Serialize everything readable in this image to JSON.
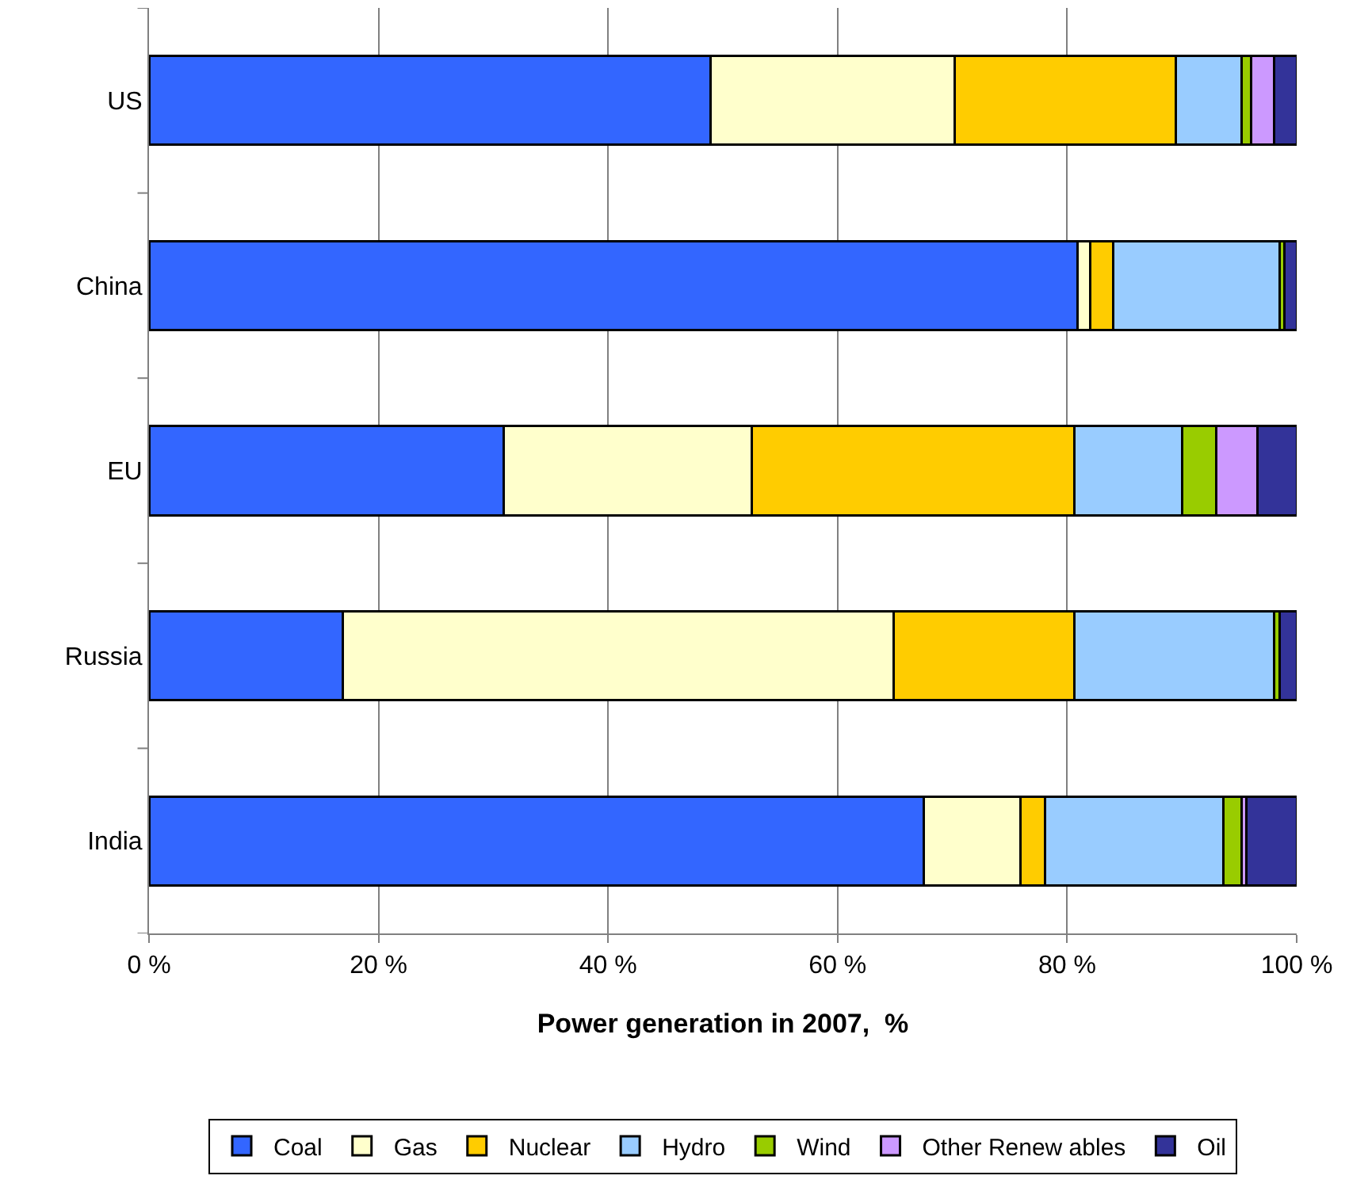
{
  "chart_data": {
    "type": "bar",
    "orientation": "horizontal",
    "stacked": true,
    "xlabel": "Power generation in 2007,  %",
    "categories": [
      "US",
      "China",
      "EU",
      "Russia",
      "India"
    ],
    "series": [
      {
        "name": "Coal",
        "color": "#3366ff",
        "values": [
          48.9,
          80.9,
          30.9,
          16.9,
          67.5
        ]
      },
      {
        "name": "Gas",
        "color": "#ffffcc",
        "values": [
          21.3,
          1.1,
          21.6,
          48.0,
          8.4
        ]
      },
      {
        "name": "Nuclear",
        "color": "#ffcc00",
        "values": [
          19.3,
          2.0,
          28.1,
          15.7,
          2.2
        ]
      },
      {
        "name": "Hydro",
        "color": "#99ccff",
        "values": [
          5.7,
          14.5,
          9.4,
          17.4,
          15.5
        ]
      },
      {
        "name": "Wind",
        "color": "#99cc00",
        "values": [
          0.8,
          0.4,
          3.0,
          0.5,
          1.6
        ]
      },
      {
        "name": "Other Renew ables",
        "color": "#cc99ff",
        "values": [
          2.0,
          0,
          3.6,
          0,
          0.4
        ]
      },
      {
        "name": "Oil",
        "color": "#333399",
        "values": [
          2.0,
          1.1,
          3.4,
          1.5,
          4.4
        ]
      }
    ],
    "xlim": [
      0,
      100
    ],
    "xticks": [
      {
        "value": 0,
        "label": "0 %"
      },
      {
        "value": 20,
        "label": "20 %"
      },
      {
        "value": 40,
        "label": "40 %"
      },
      {
        "value": 60,
        "label": "60 %"
      },
      {
        "value": 80,
        "label": "80 %"
      },
      {
        "value": 100,
        "label": "100 %"
      }
    ],
    "grid": "x",
    "legend": "bottom"
  }
}
